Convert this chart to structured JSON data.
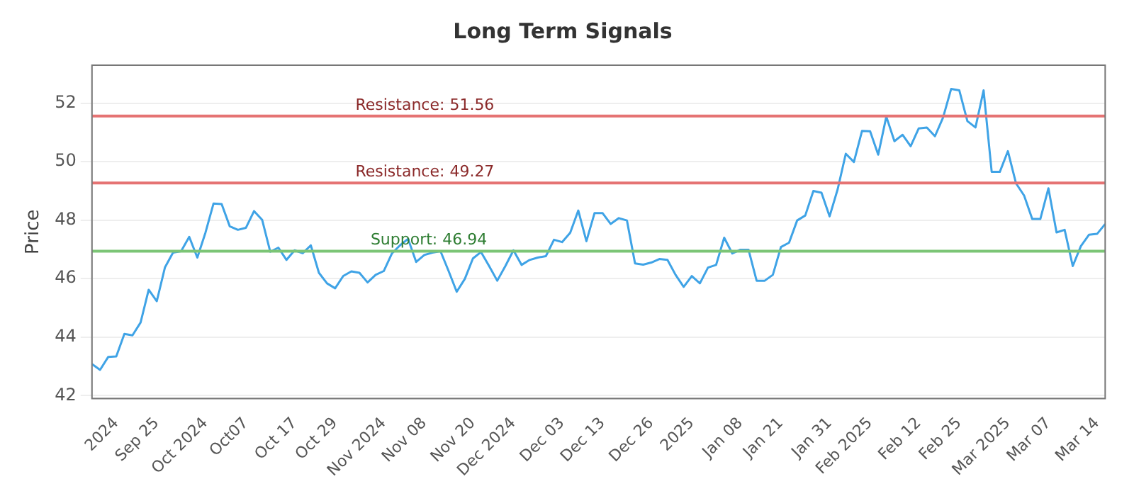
{
  "chart_data": {
    "type": "line",
    "title": "Long Term Signals",
    "ylabel": "Price",
    "categories": [
      null,
      null,
      null,
      "2024",
      null,
      null,
      null,
      null,
      "Sep 25",
      null,
      null,
      null,
      null,
      null,
      "Oct 2024",
      null,
      null,
      null,
      null,
      "Oct07",
      null,
      null,
      null,
      null,
      null,
      "Oct 17",
      null,
      null,
      null,
      null,
      "Oct 29",
      null,
      null,
      null,
      null,
      null,
      "Nov 2024",
      null,
      null,
      null,
      null,
      "Nov 08",
      null,
      null,
      null,
      null,
      null,
      "Nov 20",
      null,
      null,
      null,
      null,
      "Dec 2024",
      null,
      null,
      null,
      null,
      null,
      "Dec 03",
      null,
      null,
      null,
      null,
      "Dec 13",
      null,
      null,
      null,
      null,
      null,
      "Dec 26",
      null,
      null,
      null,
      null,
      "2025",
      null,
      null,
      null,
      null,
      null,
      "Jan 08",
      null,
      null,
      null,
      null,
      "Jan 21",
      null,
      null,
      null,
      null,
      null,
      "Jan 31",
      null,
      null,
      null,
      null,
      "Feb 2025",
      null,
      null,
      null,
      null,
      null,
      "Feb 12",
      null,
      null,
      null,
      null,
      "Feb 25",
      null,
      null,
      null,
      null,
      null,
      "Mar 2025",
      null,
      null,
      null,
      null,
      "Mar 07",
      null,
      null,
      null,
      null,
      null,
      "Mar 14",
      null
    ],
    "series": [
      {
        "color": "#3fa3e6",
        "values": [
          43.08,
          42.88,
          43.32,
          43.34,
          44.11,
          44.06,
          44.5,
          45.62,
          45.23,
          46.38,
          46.89,
          46.94,
          47.43,
          46.72,
          47.57,
          48.57,
          48.55,
          47.79,
          47.67,
          47.74,
          48.31,
          48.01,
          46.92,
          47.06,
          46.64,
          46.97,
          46.87,
          47.14,
          46.2,
          45.84,
          45.67,
          46.09,
          46.25,
          46.2,
          45.87,
          46.13,
          46.26,
          46.86,
          47.14,
          47.36,
          46.57,
          46.81,
          46.89,
          46.94,
          46.26,
          45.55,
          45.99,
          46.69,
          46.91,
          46.43,
          45.93,
          46.43,
          46.97,
          46.47,
          46.64,
          46.72,
          46.77,
          47.33,
          47.25,
          47.57,
          48.33,
          47.28,
          48.24,
          48.24,
          47.87,
          48.07,
          47.99,
          46.52,
          46.48,
          46.55,
          46.67,
          46.64,
          46.13,
          45.72,
          46.09,
          45.84,
          46.38,
          46.47,
          47.4,
          46.86,
          46.99,
          46.99,
          45.93,
          45.93,
          46.13,
          47.08,
          47.23,
          47.99,
          48.16,
          49.0,
          48.94,
          48.13,
          49.06,
          50.27,
          49.99,
          51.05,
          51.04,
          50.24,
          51.54,
          50.7,
          50.92,
          50.53,
          51.14,
          51.17,
          50.87,
          51.51,
          52.49,
          52.44,
          51.39,
          51.17,
          52.44,
          49.65,
          49.65,
          50.36,
          49.26,
          48.84,
          48.04,
          48.04,
          49.09,
          47.58,
          47.67,
          46.43,
          47.11,
          47.5,
          47.53,
          47.87
        ]
      }
    ],
    "ylim": [
      41.9,
      53.3
    ],
    "yticks": [
      42,
      44,
      46,
      48,
      50,
      52
    ],
    "grid": "y",
    "legend": false,
    "marker": "none",
    "line_style": "solid",
    "ref_lines": [
      {
        "axis": "y",
        "value": 51.56,
        "label": "Resistance: 51.56",
        "color": "#e57373"
      },
      {
        "axis": "y",
        "value": 49.27,
        "label": "Resistance: 49.27",
        "color": "#e57373"
      },
      {
        "axis": "y",
        "value": 46.94,
        "label": "Support: 46.94",
        "color": "#7cc576"
      }
    ]
  }
}
